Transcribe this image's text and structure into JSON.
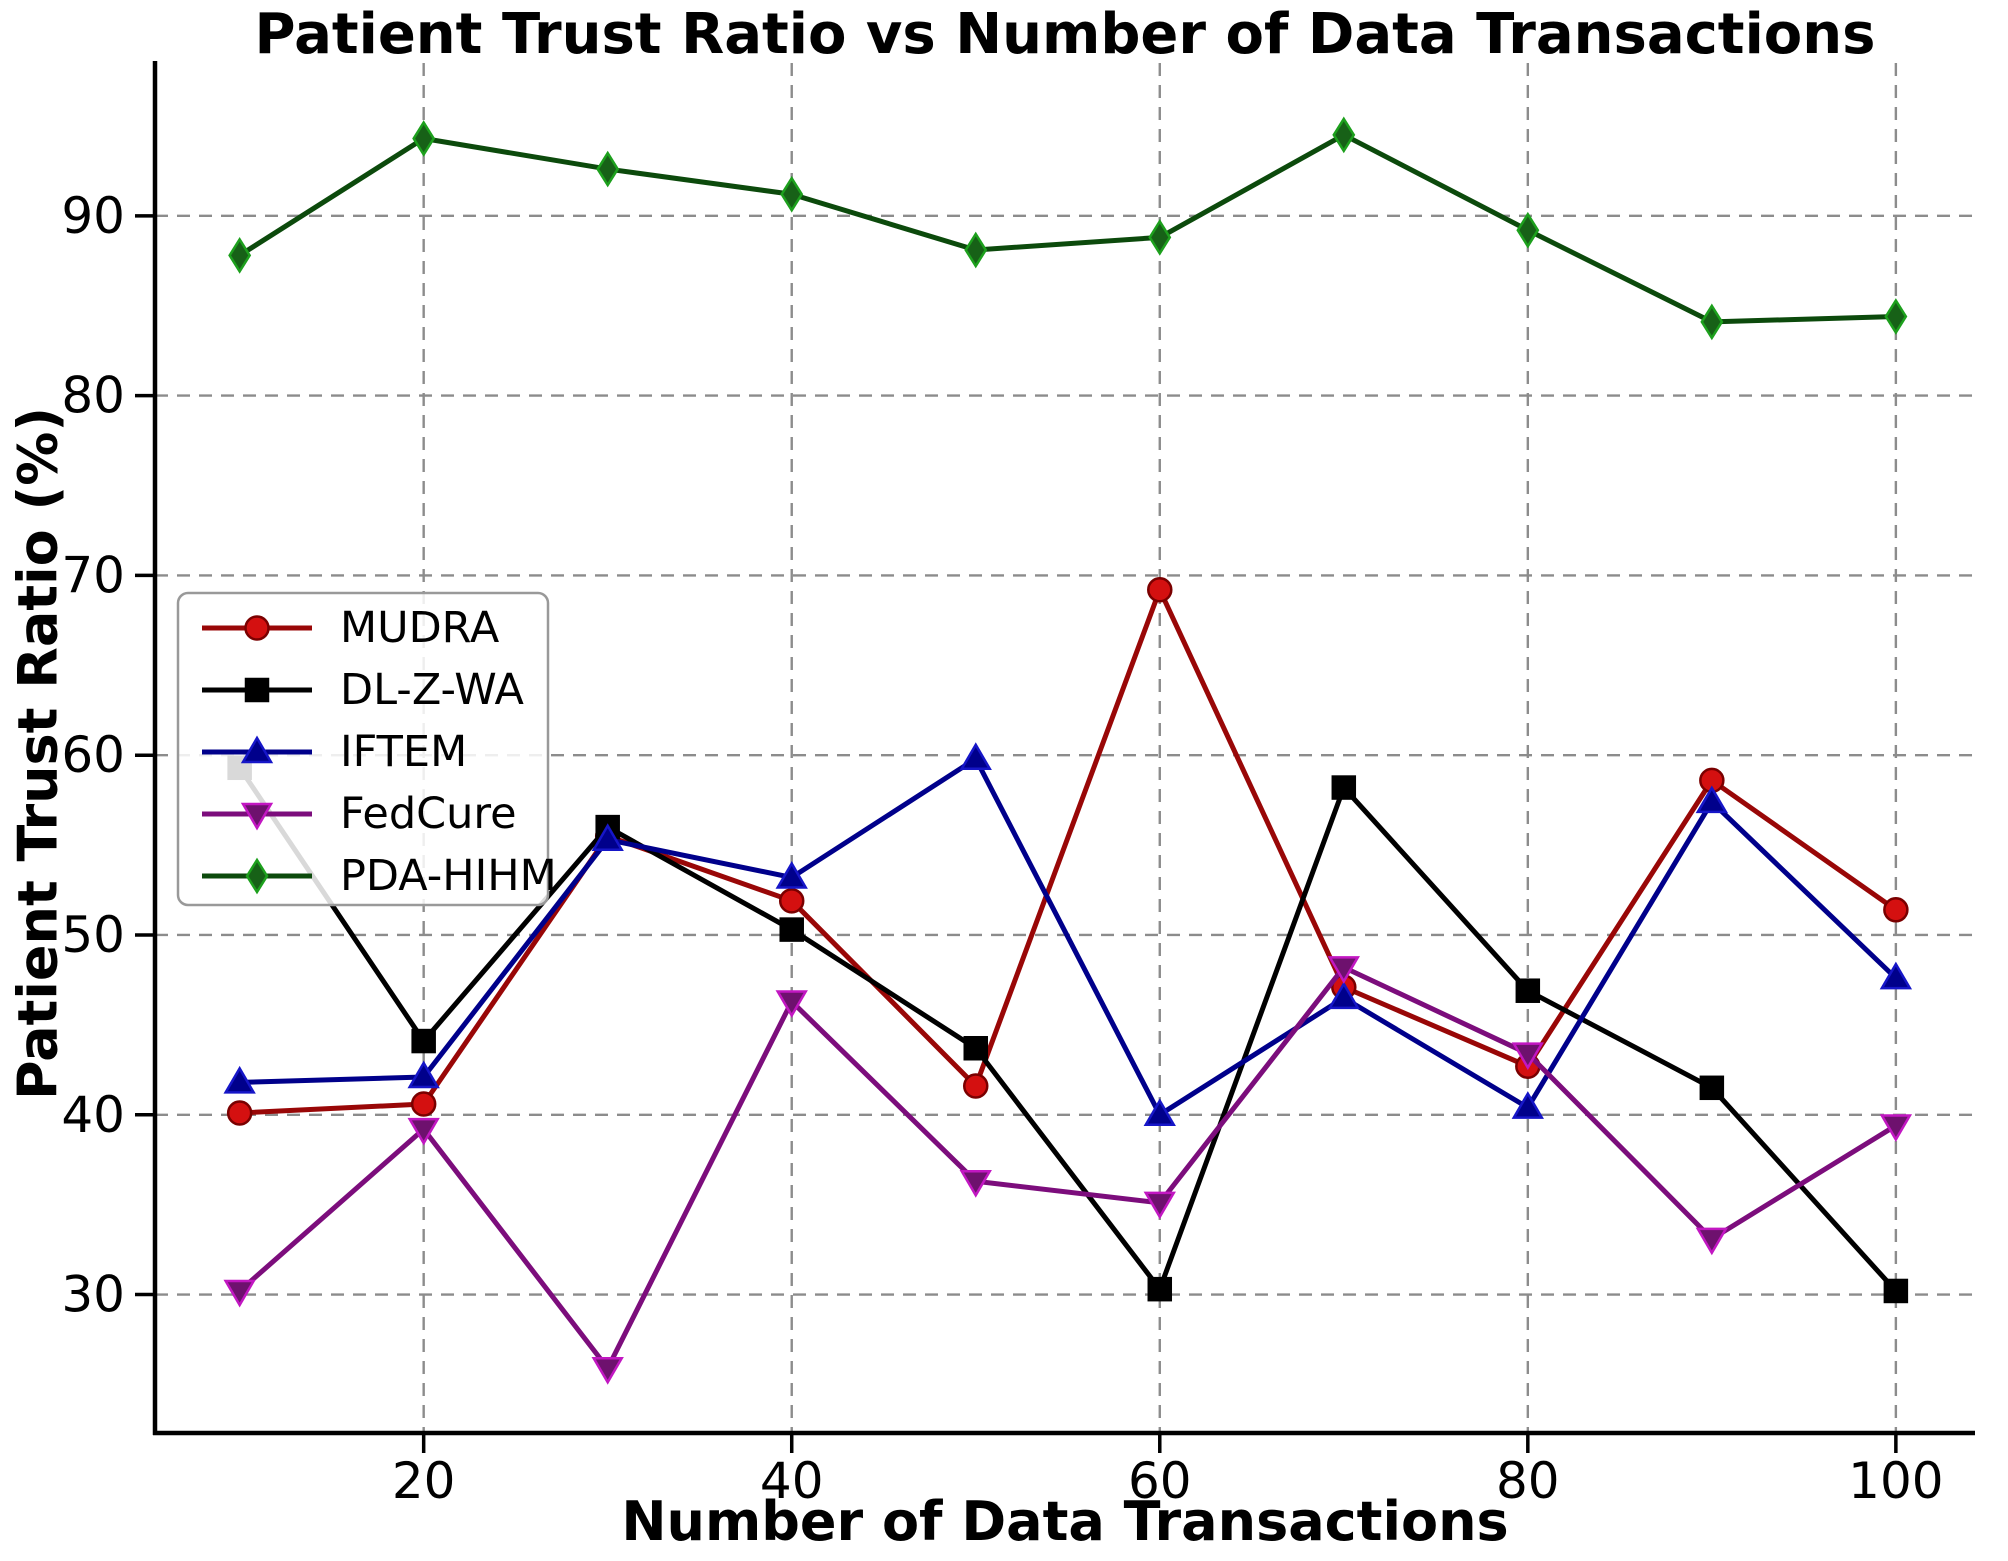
{
  "chart_data": {
    "type": "line",
    "title": "Patient Trust Ratio vs Number of Data Transactions",
    "xlabel": "Number of Data Transactions",
    "ylabel": "Patient Trust Ratio (%)",
    "x": [
      10,
      20,
      30,
      40,
      50,
      60,
      70,
      80,
      90,
      100
    ],
    "x_ticks": [
      20,
      40,
      60,
      80,
      100
    ],
    "y_ticks": [
      30,
      40,
      50,
      60,
      70,
      80,
      90
    ],
    "xlim": [
      5.4,
      104.3
    ],
    "ylim": [
      22.3,
      98.5
    ],
    "grid": true,
    "grid_style": "dashed",
    "grid_color": "#8c8c8c",
    "legend_position": "center left",
    "series": [
      {
        "name": "MUDRA",
        "marker": "circle",
        "line_color": "#990707",
        "marker_color": "#d41010",
        "marker_edge": "#7a0000",
        "values": [
          40.1,
          40.6,
          55.5,
          51.9,
          41.6,
          69.2,
          47.1,
          42.7,
          58.6,
          51.4
        ]
      },
      {
        "name": "DL-Z-WA",
        "marker": "square",
        "line_color": "#000000",
        "marker_color": "#000000",
        "marker_edge": "#000000",
        "values": [
          59.3,
          44.1,
          56.0,
          50.3,
          43.7,
          30.3,
          58.2,
          46.9,
          41.5,
          30.2
        ]
      },
      {
        "name": "IFTEM",
        "marker": "triangle-up",
        "line_color": "#00008b",
        "marker_color": "#00008b",
        "marker_edge": "#1616c8",
        "values": [
          41.8,
          42.1,
          55.3,
          53.2,
          59.8,
          40.0,
          46.5,
          40.4,
          57.4,
          47.6
        ]
      },
      {
        "name": "FedCure",
        "marker": "triangle-down",
        "line_color": "#7c0d7c",
        "marker_color": "#6e116e",
        "marker_edge": "#c217c2",
        "values": [
          30.2,
          39.2,
          25.9,
          46.3,
          36.3,
          35.1,
          48.2,
          43.4,
          33.1,
          39.4
        ]
      },
      {
        "name": "PDA-HIHM",
        "marker": "diamond",
        "line_color": "#0c4a0c",
        "marker_color": "#176117",
        "marker_edge": "#1da01d",
        "values": [
          87.8,
          94.3,
          92.6,
          91.2,
          88.1,
          88.8,
          94.5,
          89.2,
          84.1,
          84.4
        ]
      }
    ]
  }
}
